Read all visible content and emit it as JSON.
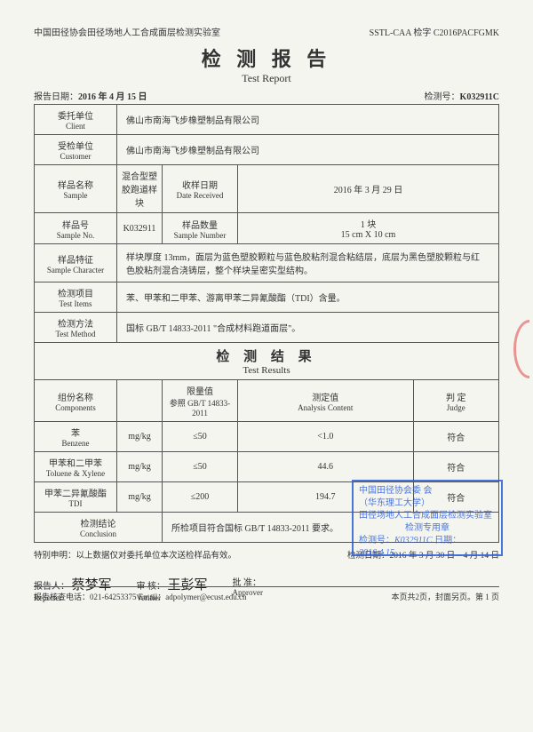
{
  "header": {
    "left": "中国田径协会田径场地人工合成面层检测实验室",
    "right": "SSTL-CAA 检字 C2016PACFGMK"
  },
  "title": {
    "cn": "检 测 报 告",
    "en": "Test Report"
  },
  "meta": {
    "date_label": "报告日期：",
    "date": "2016 年 4 月 15 日",
    "no_label": "检测号：",
    "no": "K032911C"
  },
  "rows": {
    "client_lbl_cn": "委托单位",
    "client_lbl_en": "Client",
    "client_val": "佛山市南海飞步橡塑制品有限公司",
    "customer_lbl_cn": "受检单位",
    "customer_lbl_en": "Customer",
    "customer_val": "佛山市南海飞步橡塑制品有限公司",
    "sample_lbl_cn": "样品名称",
    "sample_lbl_en": "Sample",
    "sample_val": "混合型塑胶跑道样块",
    "daterecv_lbl_cn": "收样日期",
    "daterecv_lbl_en": "Date Received",
    "daterecv_val": "2016 年 3 月 29 日",
    "sno_lbl_cn": "样品号",
    "sno_lbl_en": "Sample No.",
    "sno_val": "K032911",
    "snum_lbl_cn": "样品数量",
    "snum_lbl_en": "Sample Number",
    "snum_val1": "1 块",
    "snum_val2": "15 cm X 10 cm",
    "char_lbl_cn": "样品特征",
    "char_lbl_en": "Sample Character",
    "char_val": "样块厚度 13mm，面层为蓝色塑胶颗粒与蓝色胶粘剂混合粘结层，底层为黑色塑胶颗粒与红色胶粘剂混合浇铸层，整个样块呈密实型结构。",
    "items_lbl_cn": "检测项目",
    "items_lbl_en": "Test Items",
    "items_val": "苯、甲苯和二甲苯、游离甲苯二异氰酸酯（TDI）含量。",
    "method_lbl_cn": "检测方法",
    "method_lbl_en": "Test Method",
    "method_val": "国标 GB/T 14833-2011 \"合成材料跑道面层\"。"
  },
  "results_title": {
    "cn": "检 测 结 果",
    "en": "Test Results"
  },
  "results": {
    "h_comp_cn": "组份名称",
    "h_comp_en": "Components",
    "h_unit": "",
    "h_limit_cn": "限量值",
    "h_limit_en": "参照 GB/T 14833-2011",
    "h_anal_cn": "测定值",
    "h_anal_en": "Analysis Content",
    "h_judge_cn": "判 定",
    "h_judge_en": "Judge",
    "rows": [
      {
        "cn": "苯",
        "en": "Benzene",
        "unit": "mg/kg",
        "limit": "≤50",
        "val": "<1.0",
        "judge": "符合"
      },
      {
        "cn": "甲苯和二甲苯",
        "en": "Toluene & Xylene",
        "unit": "mg/kg",
        "limit": "≤50",
        "val": "44.6",
        "judge": "符合"
      },
      {
        "cn": "甲苯二异氰酸酯",
        "en": "TDI",
        "unit": "mg/kg",
        "limit": "≤200",
        "val": "194.7",
        "judge": "符合"
      }
    ],
    "concl_lbl_cn": "检测结论",
    "concl_lbl_en": "Conclusion",
    "concl_val": "所检项目符合国标 GB/T 14833-2011 要求。"
  },
  "note": {
    "left": "特别申明：以上数据仅对委托单位本次送检样品有效。",
    "right": "检测日期：2016 年 3 月 30 日 – 4 月 14 日"
  },
  "sig": {
    "reporter_cn": "报告人：",
    "reporter_en": "Reporter",
    "reporter_sig": "蔡梦军",
    "verifier_cn": "审 核：",
    "verifier_en": "Verifier",
    "verifier_sig": "王彭军",
    "approver_cn": "批 准：",
    "approver_en": "Approver"
  },
  "stamp": {
    "l1": "中国田径协会委 会",
    "l2": "（华东理工大学）",
    "l3": "田径场地人工合成面层检测实验室",
    "l4": "检测专用章",
    "l5a": "检测号：",
    "l5b": "K032911C",
    "l5c": " 日期：",
    "l5d": "2016.4.15"
  },
  "footer": {
    "left": "报告核查电话：021-64253375    Email：adpolymer@ecust.edu.cn",
    "right": "本页共2页，封面另页。第 1 页"
  }
}
